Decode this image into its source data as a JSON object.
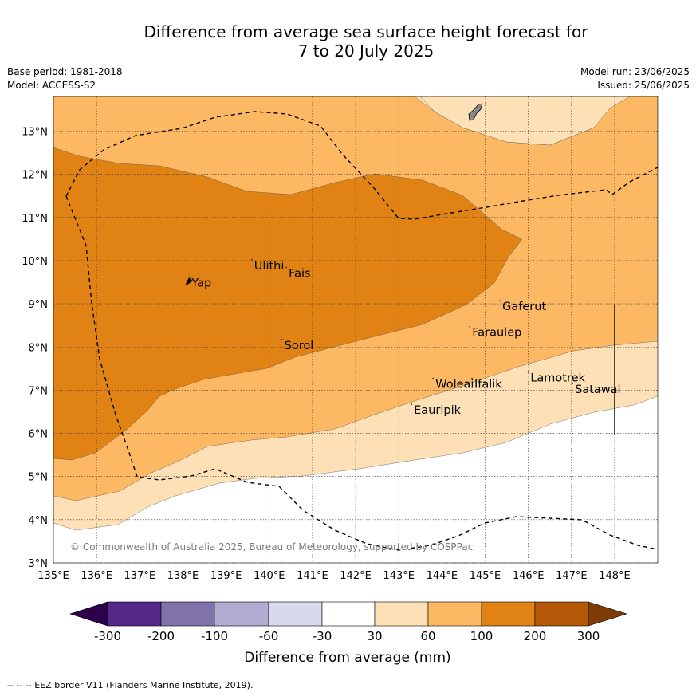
{
  "title_line1": "Difference from average sea surface height forecast for",
  "title_line2": "7 to 20 July 2025",
  "meta_left": [
    "Base period: 1981-2018",
    "Model: ACCESS-S2"
  ],
  "meta_right": [
    "Model run: 23/06/2025",
    "Issued: 25/06/2025"
  ],
  "copyright": "© Commonwealth of Australia 2025, Bureau of Meteorology, supported by COSPPac",
  "footnote": "--  --  -- EEZ border V11 (Flanders Marine Institute, 2019).",
  "colorbar_label": "Difference from average (mm)",
  "colorbar_ticks": [
    "-300",
    "-200",
    "-100",
    "-60",
    "-30",
    "30",
    "60",
    "100",
    "200",
    "300"
  ],
  "colors": {
    "neg300": "#2d004b",
    "neg200": "#542788",
    "neg100": "#8073ac",
    "neg60": "#b2abd2",
    "neg30": "#d8daeb",
    "zero": "#ffffff",
    "pos30": "#fee0b6",
    "pos60": "#fdb863",
    "pos100": "#e08214",
    "pos200": "#b35806",
    "pos300": "#7f3b08"
  },
  "map": {
    "lon_range": [
      135,
      149
    ],
    "lat_range": [
      3,
      13.8
    ],
    "lon_ticks": [
      "135°E",
      "136°E",
      "137°E",
      "138°E",
      "139°E",
      "140°E",
      "141°E",
      "142°E",
      "143°E",
      "144°E",
      "145°E",
      "146°E",
      "147°E",
      "148°E"
    ],
    "lat_ticks": [
      "3°N",
      "4°N",
      "5°N",
      "6°N",
      "7°N",
      "8°N",
      "9°N",
      "10°N",
      "11°N",
      "12°N",
      "13°N"
    ],
    "places": [
      {
        "name": "Yap",
        "lon": 138.2,
        "lat": 9.4
      },
      {
        "name": "Ulithi",
        "lon": 139.65,
        "lat": 9.8
      },
      {
        "name": "Fais",
        "lon": 140.45,
        "lat": 9.62
      },
      {
        "name": "Sorol",
        "lon": 140.35,
        "lat": 7.95
      },
      {
        "name": "Gaferut",
        "lon": 145.4,
        "lat": 8.85
      },
      {
        "name": "Faraulep",
        "lon": 144.7,
        "lat": 8.25
      },
      {
        "name": "Woleai",
        "lon": 143.85,
        "lat": 7.05
      },
      {
        "name": "Ifalik",
        "lon": 144.75,
        "lat": 7.05
      },
      {
        "name": "Lamotrek",
        "lon": 146.05,
        "lat": 7.2
      },
      {
        "name": "Satawal",
        "lon": 147.08,
        "lat": 6.93
      },
      {
        "name": "Eauripik",
        "lon": 143.35,
        "lat": 6.45
      }
    ]
  }
}
